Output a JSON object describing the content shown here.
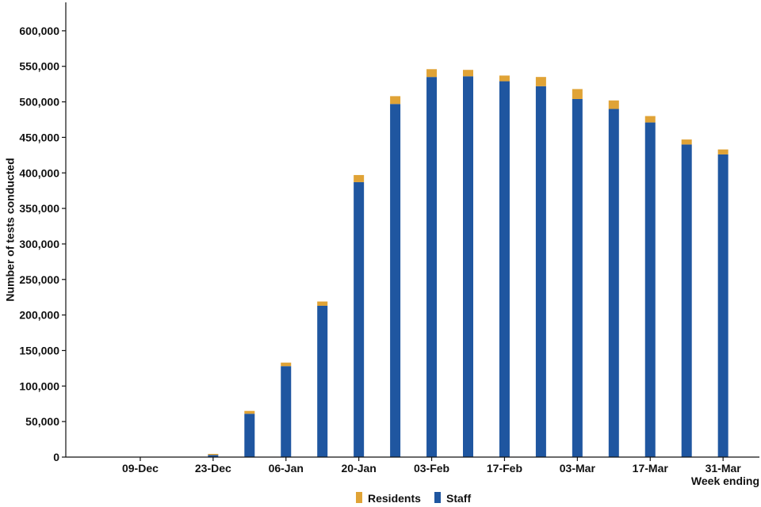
{
  "chart_data": {
    "type": "bar",
    "stacked": true,
    "title": "",
    "ylabel": "Number of tests conducted",
    "xlabel": "Week ending",
    "ylim": [
      0,
      640000
    ],
    "yticks": [
      0,
      50000,
      100000,
      150000,
      200000,
      250000,
      300000,
      350000,
      400000,
      450000,
      500000,
      550000,
      600000
    ],
    "ytick_labels": [
      "0",
      "50,000",
      "100,000",
      "150,000",
      "200,000",
      "250,000",
      "300,000",
      "350,000",
      "400,000",
      "450,000",
      "500,000",
      "550,000",
      "600,000"
    ],
    "categories": [
      "02-Dec",
      "09-Dec",
      "16-Dec",
      "23-Dec",
      "30-Dec",
      "06-Jan",
      "13-Jan",
      "20-Jan",
      "27-Jan",
      "03-Feb",
      "10-Feb",
      "17-Feb",
      "24-Feb",
      "03-Mar",
      "10-Mar",
      "17-Mar",
      "24-Mar",
      "31-Mar"
    ],
    "x_tick_labels": [
      "",
      "09-Dec",
      "",
      "23-Dec",
      "",
      "06-Jan",
      "",
      "20-Jan",
      "",
      "03-Feb",
      "",
      "17-Feb",
      "",
      "03-Mar",
      "",
      "17-Mar",
      "",
      "31-Mar"
    ],
    "series": [
      {
        "name": "Staff",
        "color": "#1f56a0",
        "values": [
          0,
          0,
          0,
          3000,
          61000,
          128000,
          213000,
          387000,
          497000,
          535000,
          536000,
          529000,
          522000,
          504000,
          490000,
          471000,
          440000,
          426000
        ]
      },
      {
        "name": "Residents",
        "color": "#e0a336",
        "values": [
          0,
          0,
          0,
          1500,
          4000,
          5000,
          6000,
          10000,
          11000,
          11000,
          9000,
          8000,
          13000,
          14000,
          12000,
          9000,
          7000,
          7000
        ]
      }
    ],
    "legend": {
      "position": "bottom-center",
      "entries": [
        "Residents",
        "Staff"
      ]
    },
    "grid": false
  }
}
